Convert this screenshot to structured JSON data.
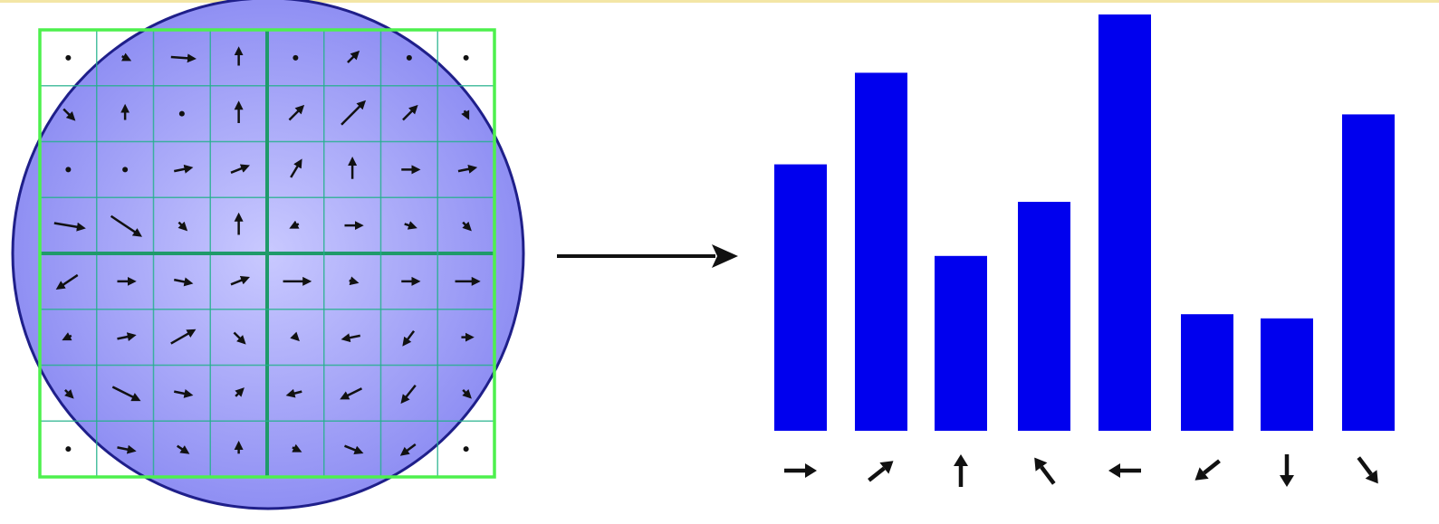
{
  "diagram": {
    "description_visible_text": "",
    "colors": {
      "circle_fill": "#8f8ff3",
      "circle_fill_center": "#c9c9ff",
      "circle_stroke": "#1f1f8a",
      "grid_outer": "#4df04d",
      "grid_inner": "#20b08a",
      "grid_thick": "#1f9a6a",
      "arrow": "#111111",
      "bar": "#0000ee",
      "top_rule": "#f3e6a6"
    },
    "grid": {
      "cells_per_side": 8,
      "blocks_per_side": 2
    },
    "gradient_arrows": [
      {
        "c": 0,
        "r": 0,
        "dx": 0,
        "dy": 0
      },
      {
        "c": 1,
        "r": 0,
        "dx": 0.2,
        "dy": 0.1
      },
      {
        "c": 2,
        "r": 0,
        "dx": 0.7,
        "dy": 0.05
      },
      {
        "c": 3,
        "r": 0,
        "dx": 0,
        "dy": -0.5
      },
      {
        "c": 4,
        "r": 0,
        "dx": 0,
        "dy": 0
      },
      {
        "c": 5,
        "r": 0,
        "dx": 0.3,
        "dy": -0.3
      },
      {
        "c": 6,
        "r": 0,
        "dx": 0.1,
        "dy": 0
      },
      {
        "c": 7,
        "r": 0,
        "dx": 0,
        "dy": 0
      },
      {
        "c": 0,
        "r": 1,
        "dx": 0.3,
        "dy": 0.3
      },
      {
        "c": 1,
        "r": 1,
        "dx": 0,
        "dy": -0.4
      },
      {
        "c": 2,
        "r": 1,
        "dx": 0.1,
        "dy": 0.05
      },
      {
        "c": 3,
        "r": 1,
        "dx": 0,
        "dy": -0.6
      },
      {
        "c": 4,
        "r": 1,
        "dx": 0.4,
        "dy": -0.4
      },
      {
        "c": 5,
        "r": 1,
        "dx": 0.7,
        "dy": -0.7
      },
      {
        "c": 6,
        "r": 1,
        "dx": 0.4,
        "dy": -0.4
      },
      {
        "c": 7,
        "r": 1,
        "dx": 0.1,
        "dy": 0.2
      },
      {
        "c": 0,
        "r": 2,
        "dx": 0,
        "dy": 0
      },
      {
        "c": 1,
        "r": 2,
        "dx": 0,
        "dy": 0
      },
      {
        "c": 2,
        "r": 2,
        "dx": 0.5,
        "dy": -0.1
      },
      {
        "c": 3,
        "r": 2,
        "dx": 0.5,
        "dy": -0.2
      },
      {
        "c": 4,
        "r": 2,
        "dx": 0.3,
        "dy": -0.5
      },
      {
        "c": 5,
        "r": 2,
        "dx": 0,
        "dy": -0.6
      },
      {
        "c": 6,
        "r": 2,
        "dx": 0.5,
        "dy": 0
      },
      {
        "c": 7,
        "r": 2,
        "dx": 0.5,
        "dy": -0.1
      },
      {
        "c": 0,
        "r": 3,
        "dx": 0.9,
        "dy": 0.15
      },
      {
        "c": 1,
        "r": 3,
        "dx": 0.9,
        "dy": 0.6
      },
      {
        "c": 2,
        "r": 3,
        "dx": 0.2,
        "dy": 0.2
      },
      {
        "c": 3,
        "r": 3,
        "dx": 0,
        "dy": -0.6
      },
      {
        "c": 4,
        "r": 3,
        "dx": -0.2,
        "dy": 0.1
      },
      {
        "c": 5,
        "r": 3,
        "dx": 0.5,
        "dy": 0
      },
      {
        "c": 6,
        "r": 3,
        "dx": 0.3,
        "dy": 0.1
      },
      {
        "c": 7,
        "r": 3,
        "dx": 0.2,
        "dy": 0.2
      },
      {
        "c": 0,
        "r": 4,
        "dx": -0.6,
        "dy": 0.4
      },
      {
        "c": 1,
        "r": 4,
        "dx": 0.5,
        "dy": 0
      },
      {
        "c": 2,
        "r": 4,
        "dx": 0.5,
        "dy": 0.1
      },
      {
        "c": 3,
        "r": 4,
        "dx": 0.5,
        "dy": -0.2
      },
      {
        "c": 4,
        "r": 4,
        "dx": 0.8,
        "dy": 0
      },
      {
        "c": 5,
        "r": 4,
        "dx": 0.2,
        "dy": 0.05
      },
      {
        "c": 6,
        "r": 4,
        "dx": 0.5,
        "dy": 0
      },
      {
        "c": 7,
        "r": 4,
        "dx": 0.7,
        "dy": 0
      },
      {
        "c": 0,
        "r": 5,
        "dx": -0.2,
        "dy": 0.1
      },
      {
        "c": 1,
        "r": 5,
        "dx": 0.5,
        "dy": -0.1
      },
      {
        "c": 2,
        "r": 5,
        "dx": 0.7,
        "dy": -0.4
      },
      {
        "c": 3,
        "r": 5,
        "dx": 0.3,
        "dy": 0.3
      },
      {
        "c": 4,
        "r": 5,
        "dx": 0.1,
        "dy": 0.1
      },
      {
        "c": 5,
        "r": 5,
        "dx": -0.5,
        "dy": 0.1
      },
      {
        "c": 6,
        "r": 5,
        "dx": -0.3,
        "dy": 0.4
      },
      {
        "c": 7,
        "r": 5,
        "dx": 0.3,
        "dy": 0
      },
      {
        "c": 0,
        "r": 6,
        "dx": 0.2,
        "dy": 0.2
      },
      {
        "c": 1,
        "r": 6,
        "dx": 0.8,
        "dy": 0.4
      },
      {
        "c": 2,
        "r": 6,
        "dx": 0.5,
        "dy": 0.1
      },
      {
        "c": 3,
        "r": 6,
        "dx": 0.2,
        "dy": -0.2
      },
      {
        "c": 4,
        "r": 6,
        "dx": -0.4,
        "dy": 0.1
      },
      {
        "c": 5,
        "r": 6,
        "dx": -0.6,
        "dy": 0.3
      },
      {
        "c": 6,
        "r": 6,
        "dx": -0.4,
        "dy": 0.5
      },
      {
        "c": 7,
        "r": 6,
        "dx": 0.2,
        "dy": 0.2
      },
      {
        "c": 0,
        "r": 7,
        "dx": 0,
        "dy": 0
      },
      {
        "c": 1,
        "r": 7,
        "dx": 0.5,
        "dy": 0.1
      },
      {
        "c": 2,
        "r": 7,
        "dx": 0.3,
        "dy": 0.2
      },
      {
        "c": 3,
        "r": 7,
        "dx": 0,
        "dy": -0.3
      },
      {
        "c": 4,
        "r": 7,
        "dx": 0.2,
        "dy": 0.1
      },
      {
        "c": 5,
        "r": 7,
        "dx": 0.5,
        "dy": 0.2
      },
      {
        "c": 6,
        "r": 7,
        "dx": -0.4,
        "dy": 0.3
      },
      {
        "c": 7,
        "r": 7,
        "dx": 0,
        "dy": 0
      }
    ],
    "flow_arrow": {
      "direction": "right"
    },
    "histogram": {
      "bins": [
        {
          "direction": "right",
          "value": 0.64
        },
        {
          "direction": "up-right",
          "value": 0.86
        },
        {
          "direction": "up",
          "value": 0.42
        },
        {
          "direction": "up-left",
          "value": 0.55
        },
        {
          "direction": "left",
          "value": 1.0
        },
        {
          "direction": "down-left",
          "value": 0.28
        },
        {
          "direction": "down",
          "value": 0.27
        },
        {
          "direction": "down-right",
          "value": 0.76
        }
      ]
    }
  }
}
